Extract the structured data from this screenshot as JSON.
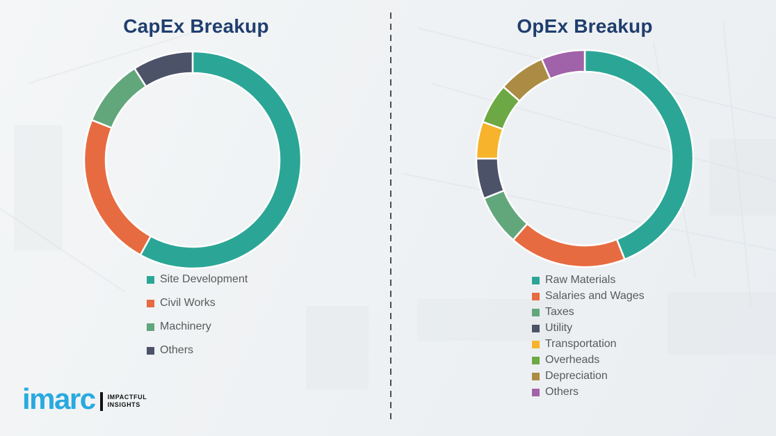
{
  "chart_data": [
    {
      "type": "donut",
      "title": "CapEx Breakup",
      "labels": [
        "Site Development",
        "Civil Works",
        "Machinery",
        "Others"
      ],
      "values": [
        58,
        23,
        10,
        9
      ],
      "value_unit": "percent (estimated from arc angles, no numeric labels shown)",
      "colors": [
        "#2BA696",
        "#E76B41",
        "#62A77C",
        "#4C5268"
      ],
      "start_angle_deg": 0,
      "direction": "clockwise",
      "legend_position": "below-chart-left"
    },
    {
      "type": "donut",
      "title": "OpEx Breakup",
      "labels": [
        "Raw Materials",
        "Salaries and Wages",
        "Taxes",
        "Utility",
        "Transportation",
        "Overheads",
        "Depreciation",
        "Others"
      ],
      "values": [
        44,
        17.5,
        7.5,
        6,
        5.5,
        6,
        7,
        6.5
      ],
      "value_unit": "percent (estimated from arc angles, no numeric labels shown)",
      "colors": [
        "#2BA696",
        "#E76B41",
        "#62A77C",
        "#4C5268",
        "#F7B32B",
        "#6CA843",
        "#AC8C45",
        "#A062A8"
      ],
      "start_angle_deg": 0,
      "direction": "clockwise",
      "legend_position": "below-chart-left"
    }
  ],
  "branding": {
    "logo_text": "imarc",
    "tagline_line1": "IMPACTFUL",
    "tagline_line2": "INSIGHTS",
    "logo_color": "#29A9E0"
  },
  "styles": {
    "title_color": "#1F3E6E",
    "legend_text_color": "#595959",
    "separator_color": "#4D4D4D",
    "donut_gap_color": "#FFFFFF"
  }
}
